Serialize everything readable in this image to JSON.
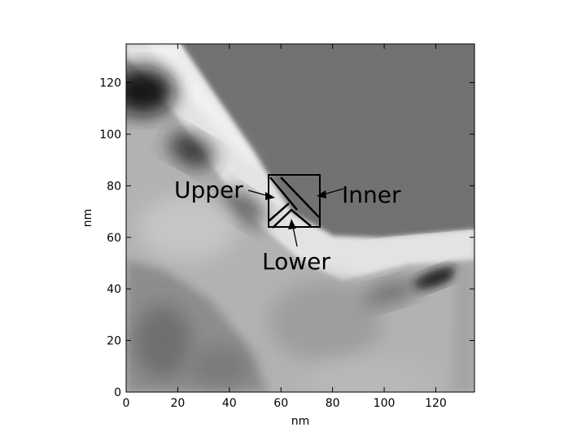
{
  "axes": {
    "xlabel": "nm",
    "ylabel": "nm",
    "xlim": [
      0,
      135
    ],
    "ylim": [
      0,
      135
    ],
    "xticks": [
      "0",
      "20",
      "40",
      "60",
      "80",
      "100",
      "120"
    ],
    "yticks": [
      "0",
      "20",
      "40",
      "60",
      "80",
      "100",
      "120"
    ]
  },
  "annotations": {
    "upper": "Upper",
    "inner": "Inner",
    "lower": "Lower"
  }
}
